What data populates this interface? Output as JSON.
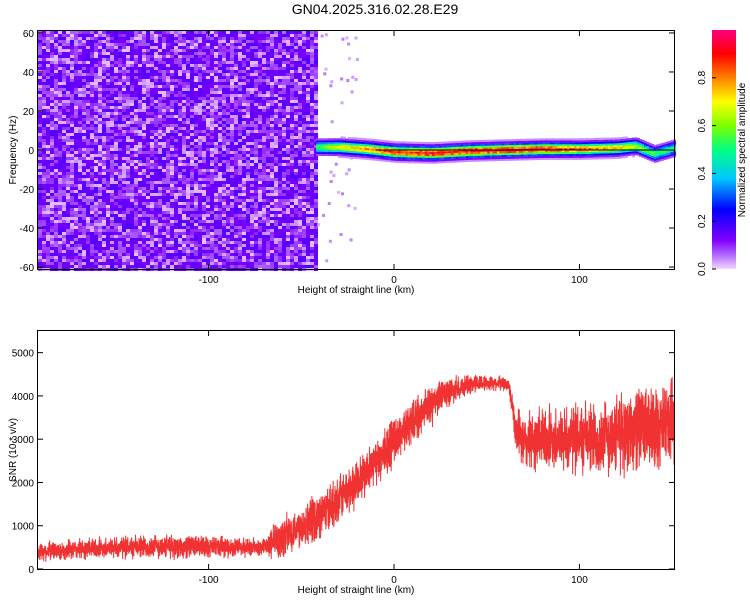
{
  "title": "GN04.2025.316.02.28.E29",
  "chart_data": [
    {
      "type": "heatmap",
      "xlabel": "Height of straight line (km)",
      "ylabel": "Frequency (Hz)",
      "xlim": [
        -192,
        151
      ],
      "ylim": [
        -61,
        61
      ],
      "xticks": [
        -100,
        0,
        100
      ],
      "yticks": [
        60,
        40,
        20,
        0,
        -20,
        -40,
        -60
      ],
      "colorbar": {
        "label": "Normalized spectral amplitude",
        "range": [
          0,
          1
        ],
        "ticks": [
          0.0,
          0.2,
          0.4,
          0.6,
          0.8
        ],
        "colors": [
          "#f0d6ff",
          "#7f00ff",
          "#0000ff",
          "#00c8ff",
          "#00ff80",
          "#7fff00",
          "#ffff00",
          "#ff8000",
          "#ff0000",
          "#ff0080"
        ]
      },
      "noise_region": {
        "x_range": [
          -192,
          -42
        ],
        "amplitude": 0.15
      },
      "signal_ridge": [
        {
          "x": -42,
          "freq": 1.5,
          "amp": 0.6
        },
        {
          "x": -30,
          "freq": 1.5,
          "amp": 0.75
        },
        {
          "x": -15,
          "freq": 0.5,
          "amp": 0.85
        },
        {
          "x": 0,
          "freq": -1.0,
          "amp": 0.95
        },
        {
          "x": 20,
          "freq": -1.5,
          "amp": 1.0
        },
        {
          "x": 40,
          "freq": -0.5,
          "amp": 0.98
        },
        {
          "x": 60,
          "freq": 0.0,
          "amp": 1.0
        },
        {
          "x": 80,
          "freq": 0.5,
          "amp": 0.98
        },
        {
          "x": 100,
          "freq": 0.5,
          "amp": 0.9
        },
        {
          "x": 120,
          "freq": 1.0,
          "amp": 0.8
        },
        {
          "x": 130,
          "freq": 2.0,
          "amp": 0.7
        },
        {
          "x": 140,
          "freq": -2.0,
          "amp": 0.6
        },
        {
          "x": 151,
          "freq": 1.0,
          "amp": 0.55
        }
      ]
    },
    {
      "type": "line",
      "xlabel": "Height of straight line (km)",
      "ylabel": "SNR (10 * v/v)",
      "xlim": [
        -192,
        151
      ],
      "ylim": [
        0,
        5500
      ],
      "xticks": [
        -100,
        0,
        100
      ],
      "yticks": [
        0,
        1000,
        2000,
        3000,
        4000,
        5000
      ],
      "line_color": "#f03232",
      "series": [
        {
          "x": [
            -192,
            -170,
            -150,
            -130,
            -110,
            -90,
            -70,
            -62,
            -55,
            -45,
            -35,
            -25,
            -15,
            -5,
            5,
            15,
            25,
            35,
            45,
            55,
            62,
            66,
            70,
            80,
            90,
            100,
            110,
            120,
            130,
            140,
            151
          ],
          "y_center": [
            400,
            450,
            500,
            520,
            520,
            500,
            500,
            700,
            900,
            1100,
            1400,
            1800,
            2200,
            2700,
            3200,
            3600,
            4000,
            4200,
            4300,
            4300,
            4250,
            3200,
            2900,
            3000,
            3000,
            3050,
            3000,
            3100,
            3300,
            3200,
            3400
          ],
          "y_spread": [
            500,
            550,
            600,
            650,
            600,
            550,
            450,
            1200,
            1100,
            1200,
            1200,
            1300,
            1300,
            1300,
            1200,
            1100,
            900,
            600,
            500,
            400,
            400,
            1200,
            1500,
            1700,
            1800,
            1900,
            2000,
            2100,
            2200,
            2200,
            2200
          ]
        }
      ]
    }
  ]
}
